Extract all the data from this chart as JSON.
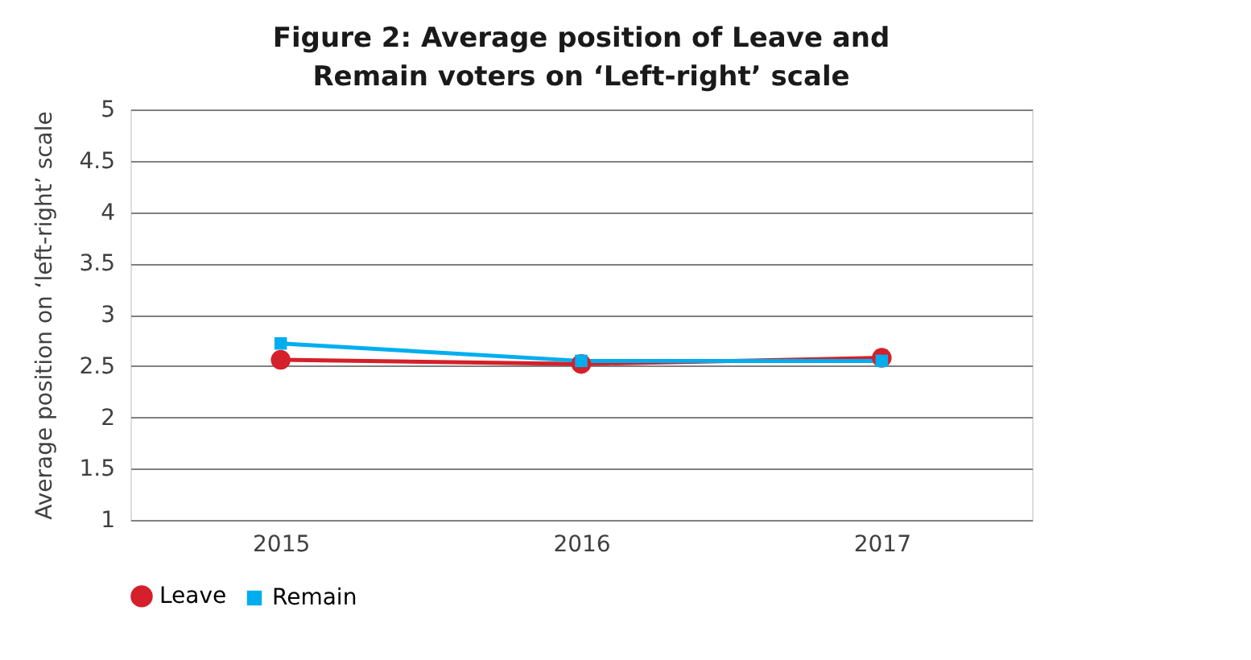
{
  "chart_data": {
    "type": "line",
    "title": "Figure 2: Average position of Leave and Remain voters on ‘Left-right’ scale",
    "ylabel": "Average position on ‘left-right’ scale",
    "categories": [
      "2015",
      "2016",
      "2017"
    ],
    "series": [
      {
        "name": "Leave",
        "color": "#d4202a",
        "marker": "circle",
        "values": [
          2.56,
          2.52,
          2.58
        ]
      },
      {
        "name": "Remain",
        "color": "#00aeef",
        "marker": "square",
        "values": [
          2.72,
          2.55,
          2.55
        ]
      }
    ],
    "ylim": [
      1,
      5
    ],
    "yticks": [
      1,
      1.5,
      2,
      2.5,
      3,
      3.5,
      4,
      4.5,
      5
    ],
    "grid": "y",
    "legend": "bottom",
    "line_style": "solid"
  }
}
